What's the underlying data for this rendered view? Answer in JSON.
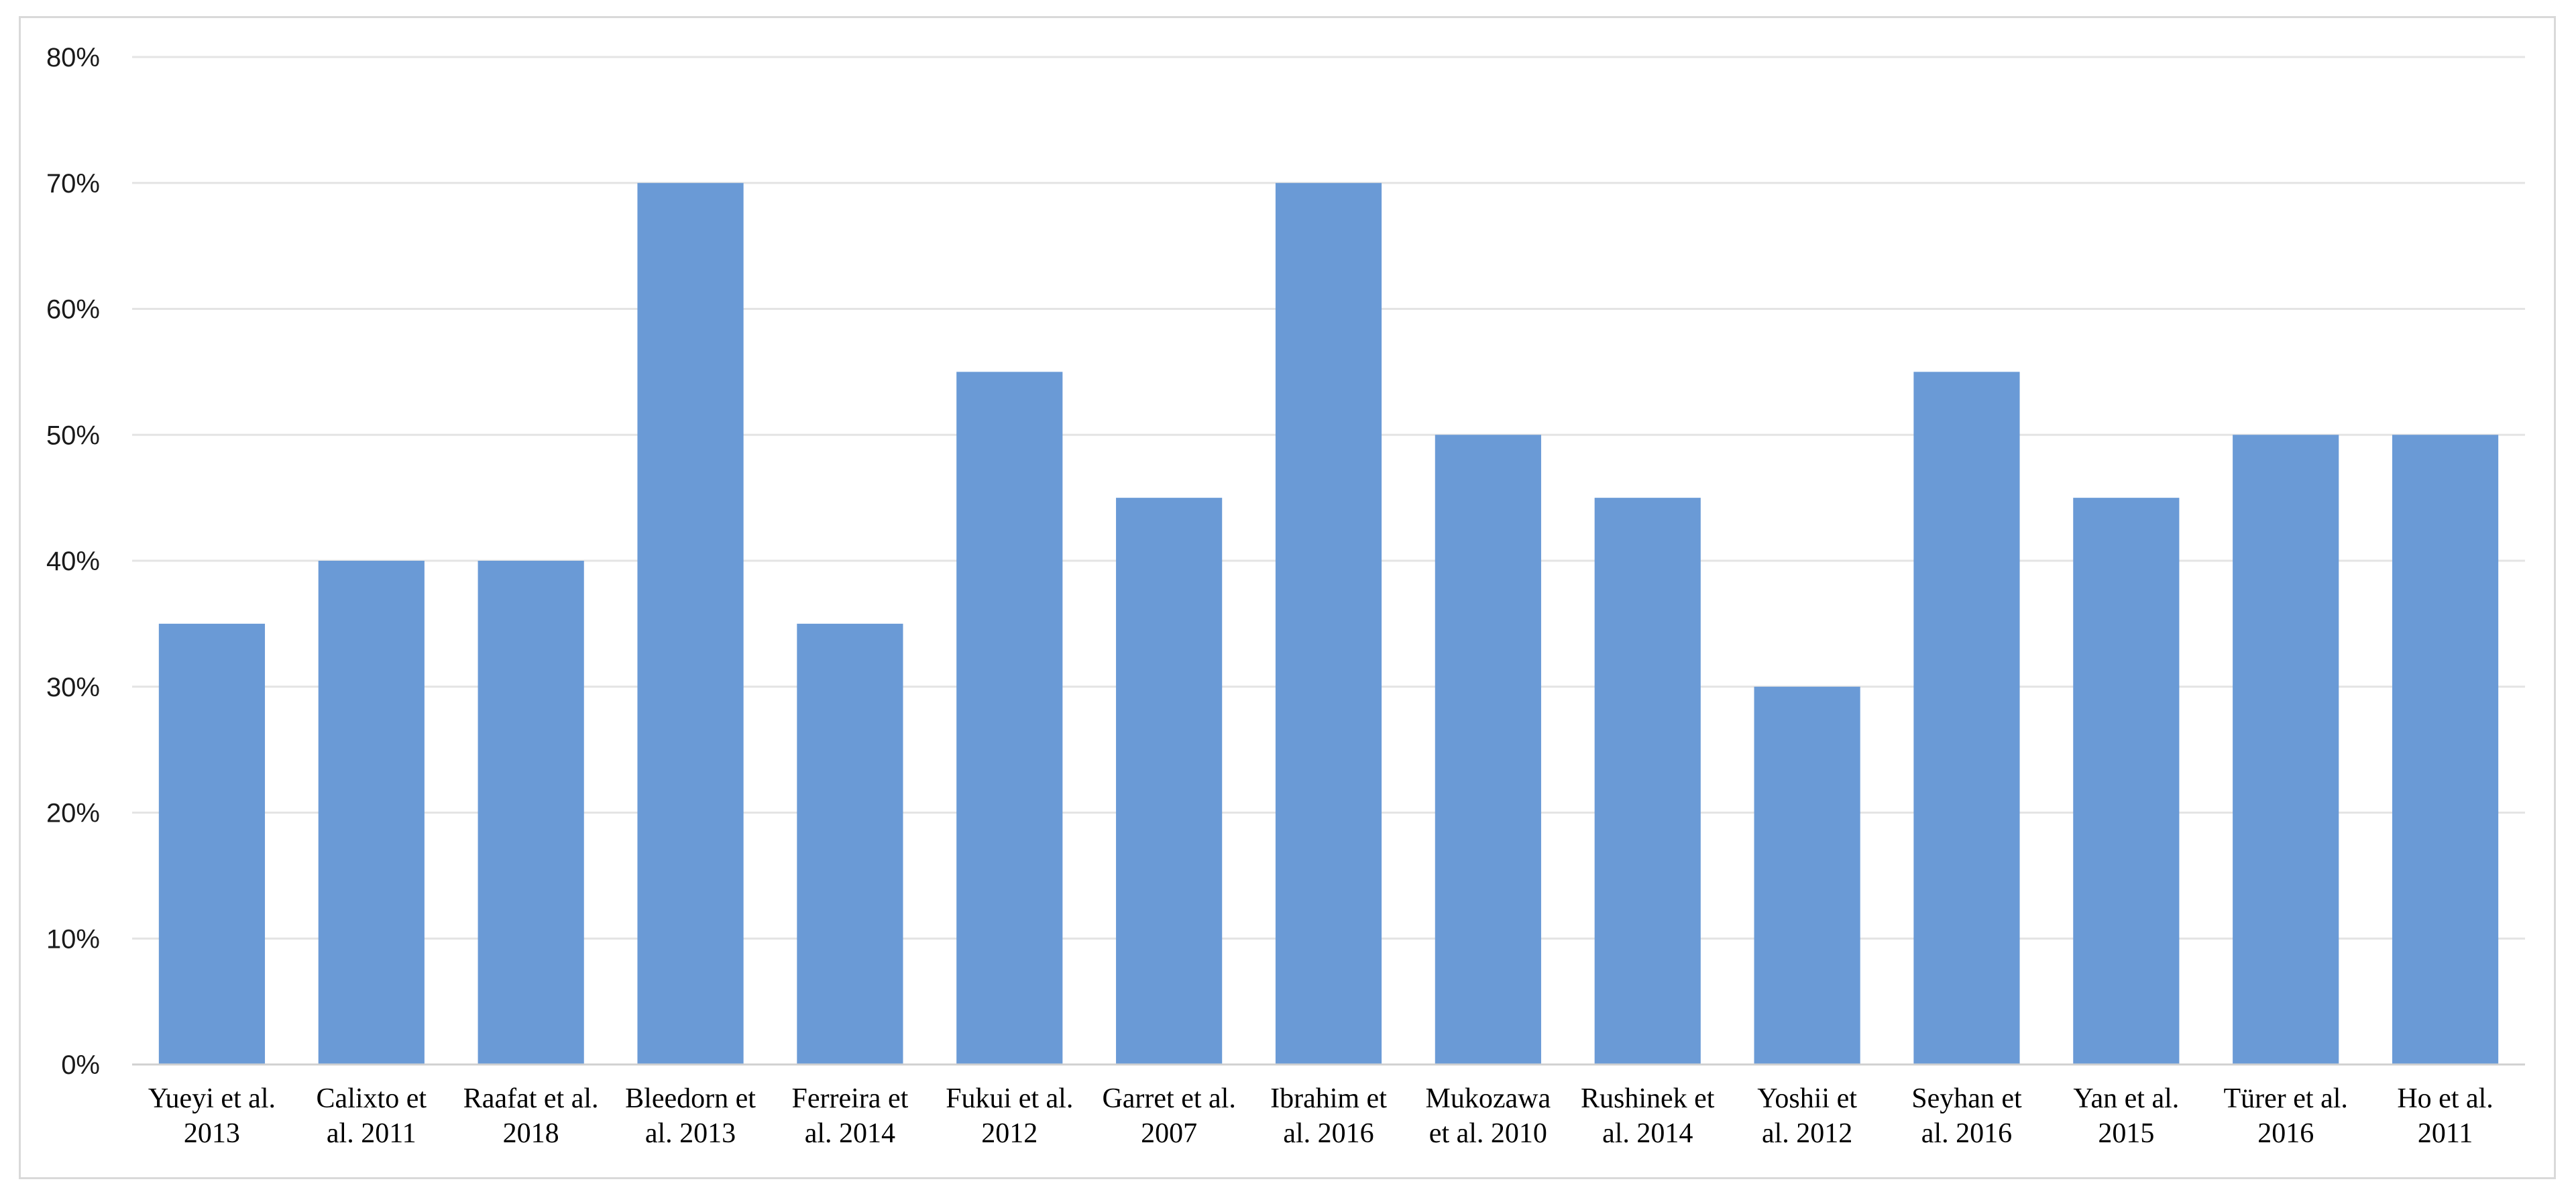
{
  "chart_data": {
    "type": "bar",
    "title": "",
    "xlabel": "",
    "ylabel": "",
    "categories": [
      [
        "Yueyi et al.",
        "2013"
      ],
      [
        "Calixto et",
        "al. 2011"
      ],
      [
        "Raafat et al.",
        "2018"
      ],
      [
        "Bleedorn et",
        "al. 2013"
      ],
      [
        "Ferreira et",
        "al. 2014"
      ],
      [
        "Fukui et al.",
        "2012"
      ],
      [
        "Garret et al.",
        "2007"
      ],
      [
        "Ibrahim et",
        "al. 2016"
      ],
      [
        "Mukozawa",
        "et al. 2010"
      ],
      [
        "Rushinek et",
        "al. 2014"
      ],
      [
        "Yoshii et",
        "al. 2012"
      ],
      [
        "Seyhan et",
        "al. 2016"
      ],
      [
        "Yan et al.",
        "2015"
      ],
      [
        "Türer et al.",
        "2016"
      ],
      [
        "Ho et al.",
        "2011"
      ]
    ],
    "values": [
      35,
      40,
      40,
      70,
      35,
      55,
      45,
      70,
      50,
      45,
      30,
      55,
      45,
      50,
      50
    ],
    "ylim": [
      0,
      80
    ],
    "yticks": [
      "0%",
      "10%",
      "20%",
      "30%",
      "40%",
      "50%",
      "60%",
      "70%",
      "80%"
    ],
    "grid": true,
    "legend": "none",
    "colors": {
      "bar": "#6a9ad6",
      "grid": "#e4e4e4",
      "frame": "#d9d9d9"
    }
  }
}
